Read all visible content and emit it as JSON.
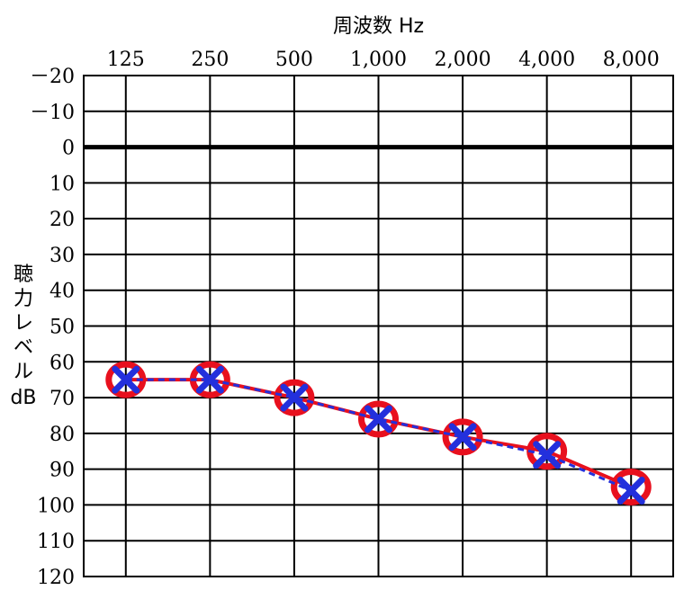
{
  "chart_data": {
    "type": "line",
    "xlabel": "周波数 Hz",
    "ylabel": "聴力レベル dB",
    "x_categories": [
      "125",
      "250",
      "500",
      "1,000",
      "2,000",
      "4,000",
      "8,000"
    ],
    "y_ticks": [
      "－20",
      "－10",
      "0",
      "10",
      "20",
      "30",
      "40",
      "50",
      "60",
      "70",
      "80",
      "90",
      "100",
      "110",
      "120"
    ],
    "y_tick_values": [
      -20,
      -10,
      0,
      10,
      20,
      30,
      40,
      50,
      60,
      70,
      80,
      90,
      100,
      110,
      120
    ],
    "ylim": [
      -20,
      120
    ],
    "y_inverted": true,
    "grid": true,
    "series": [
      {
        "marker": "circle",
        "line_style": "solid",
        "color": "#e8101e",
        "values": [
          65,
          65,
          70,
          76,
          81,
          85,
          95
        ]
      },
      {
        "marker": "cross",
        "line_style": "dashed",
        "color": "#2330dc",
        "values": [
          65,
          65,
          70,
          76,
          81,
          86,
          96
        ]
      }
    ]
  }
}
